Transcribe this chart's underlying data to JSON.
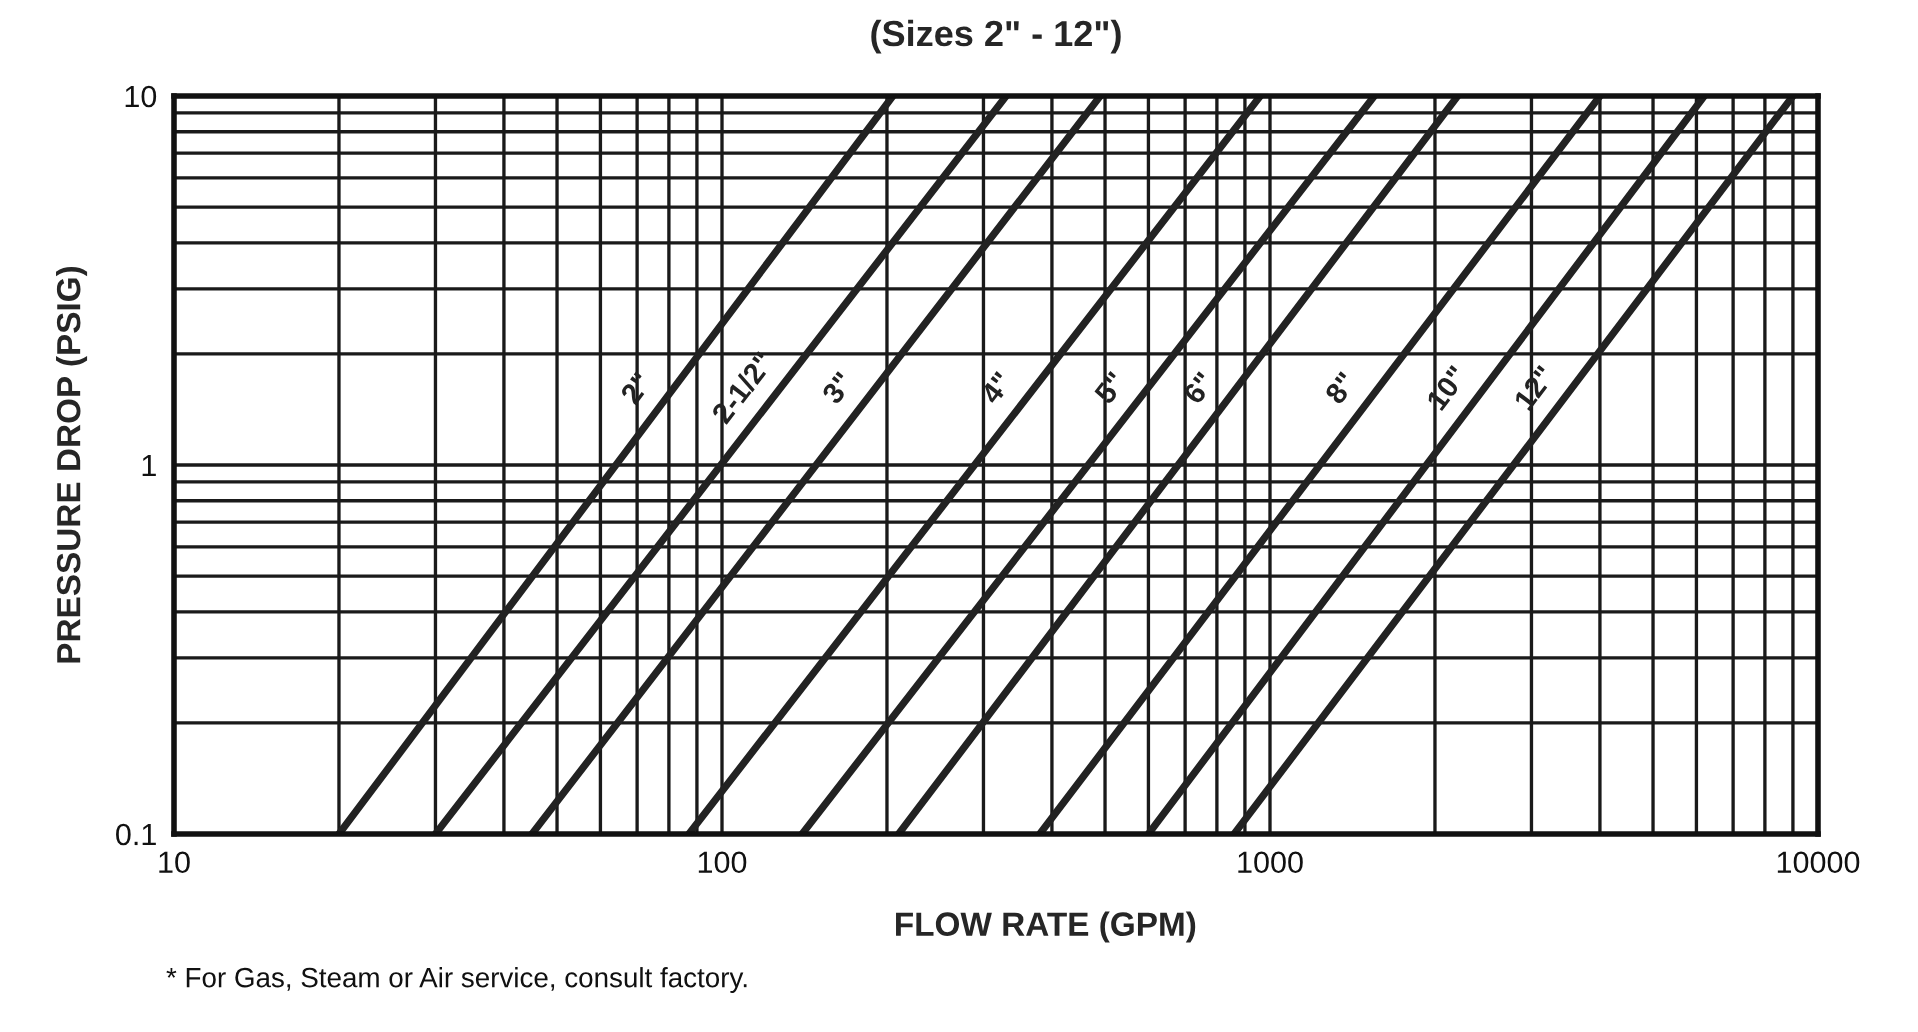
{
  "chart_data": {
    "type": "line",
    "title": "(Sizes 2\" - 12\")",
    "xlabel": "FLOW RATE (GPM)",
    "ylabel": "PRESSURE DROP (PSIG)",
    "annotations": [
      "* For Gas, Steam or Air service, consult factory."
    ],
    "log": "xy",
    "xlim": [
      10,
      10000
    ],
    "ylim": [
      0.1,
      10
    ],
    "xticks": [
      10,
      100,
      1000,
      10000
    ],
    "yticks": [
      0.1,
      1,
      10
    ],
    "grid": true,
    "legend": false,
    "marker": "none",
    "line_style": "solid",
    "series": [
      {
        "name": "2\"",
        "color": "#222222",
        "x": [
          20,
          205
        ],
        "values": [
          0.1,
          10
        ]
      },
      {
        "name": "2-1/2\"",
        "color": "#222222",
        "x": [
          30,
          330
        ],
        "values": [
          0.1,
          10
        ]
      },
      {
        "name": "3\"",
        "color": "#222222",
        "x": [
          45,
          490
        ],
        "values": [
          0.1,
          10
        ]
      },
      {
        "name": "4\"",
        "color": "#222222",
        "x": [
          87,
          960
        ],
        "values": [
          0.1,
          10
        ]
      },
      {
        "name": "5\"",
        "color": "#222222",
        "x": [
          140,
          1550
        ],
        "values": [
          0.1,
          10
        ]
      },
      {
        "name": "6\"",
        "color": "#222222",
        "x": [
          210,
          2200
        ],
        "values": [
          0.1,
          10
        ]
      },
      {
        "name": "8\"",
        "color": "#222222",
        "x": [
          380,
          4000
        ],
        "values": [
          0.1,
          10
        ]
      },
      {
        "name": "10\"",
        "color": "#222222",
        "x": [
          600,
          6200
        ],
        "values": [
          0.1,
          10
        ]
      },
      {
        "name": "12\"",
        "color": "#222222",
        "x": [
          860,
          9000
        ],
        "values": [
          0.1,
          10
        ]
      }
    ]
  }
}
